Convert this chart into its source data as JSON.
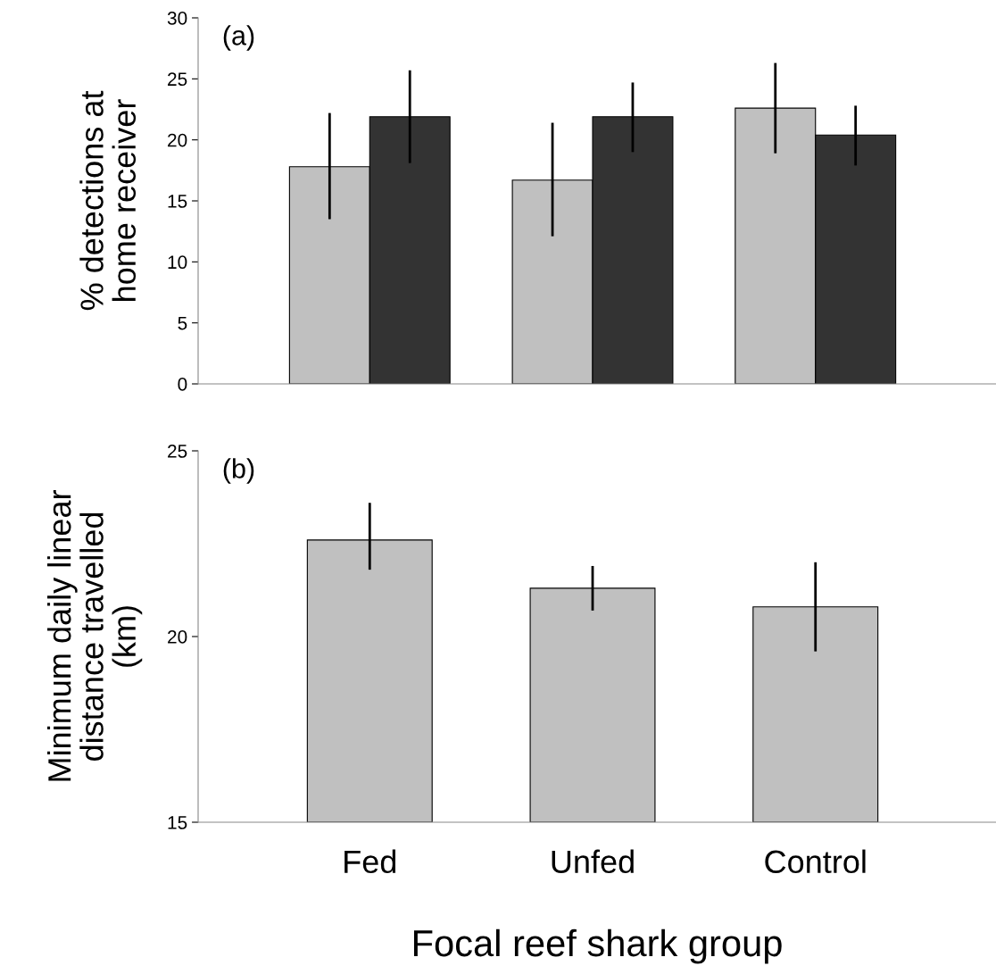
{
  "chart_data": [
    {
      "type": "bar",
      "ylabel": "% detections at\nhome receiver",
      "categories": [
        null,
        null,
        null
      ],
      "tick_labels": "y",
      "ylim": [
        0,
        30
      ],
      "yticks": [
        0,
        5,
        10,
        15,
        20,
        25,
        30
      ],
      "grid": false,
      "legend": false,
      "annotations": [
        "(a)"
      ],
      "series": [
        {
          "color": "#c0c0c0",
          "values": [
            17.8,
            16.7,
            22.6
          ],
          "errors": [
            [
              13.5,
              22.2
            ],
            [
              12.1,
              21.4
            ],
            [
              18.9,
              26.3
            ]
          ]
        },
        {
          "color": "#333333",
          "values": [
            21.9,
            21.9,
            20.4
          ],
          "errors": [
            [
              18.1,
              25.7
            ],
            [
              19.0,
              24.7
            ],
            [
              17.9,
              22.8
            ]
          ]
        }
      ]
    },
    {
      "type": "bar",
      "ylabel": "Minimum daily linear\ndistance travelled\n(km)",
      "xlabel": "Focal reef shark group",
      "categories": [
        "Fed",
        "Unfed",
        "Control"
      ],
      "ylim": [
        15,
        25
      ],
      "yticks": [
        15,
        20,
        25
      ],
      "grid": false,
      "legend": false,
      "annotations": [
        "(b)"
      ],
      "series": [
        {
          "color": "#c0c0c0",
          "values": [
            22.6,
            21.3,
            20.8
          ],
          "errors": [
            [
              21.8,
              23.6
            ],
            [
              20.7,
              21.9
            ],
            [
              19.6,
              22.0
            ]
          ]
        }
      ]
    }
  ]
}
